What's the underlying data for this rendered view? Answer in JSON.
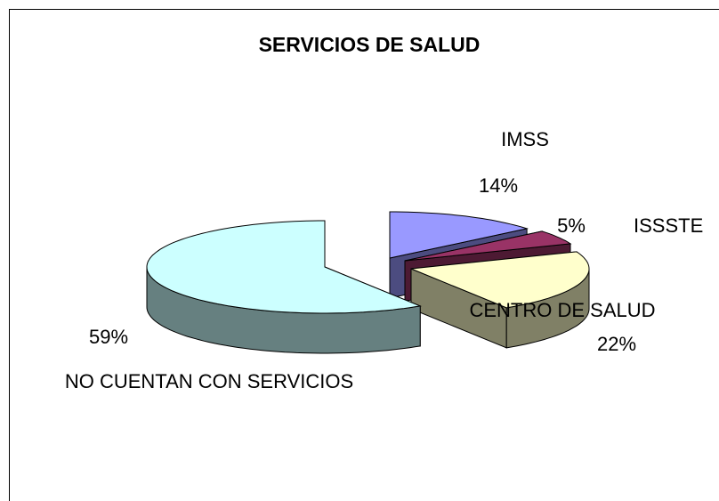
{
  "chart_data": {
    "type": "pie",
    "title": "SERVICIOS DE SALUD",
    "categories": [
      "IMSS",
      "ISSSTE",
      "CENTRO DE SALUD",
      "NO CUENTAN CON SERVICIOS"
    ],
    "values": [
      14,
      5,
      22,
      59
    ],
    "value_labels": [
      "14%",
      "5%",
      "22%",
      "59%"
    ],
    "colors": [
      "#9999ff",
      "#993366",
      "#ffffcc",
      "#ccffff"
    ],
    "side_colors": [
      "#4c4c80",
      "#4d1a33",
      "#808066",
      "#668080"
    ]
  }
}
